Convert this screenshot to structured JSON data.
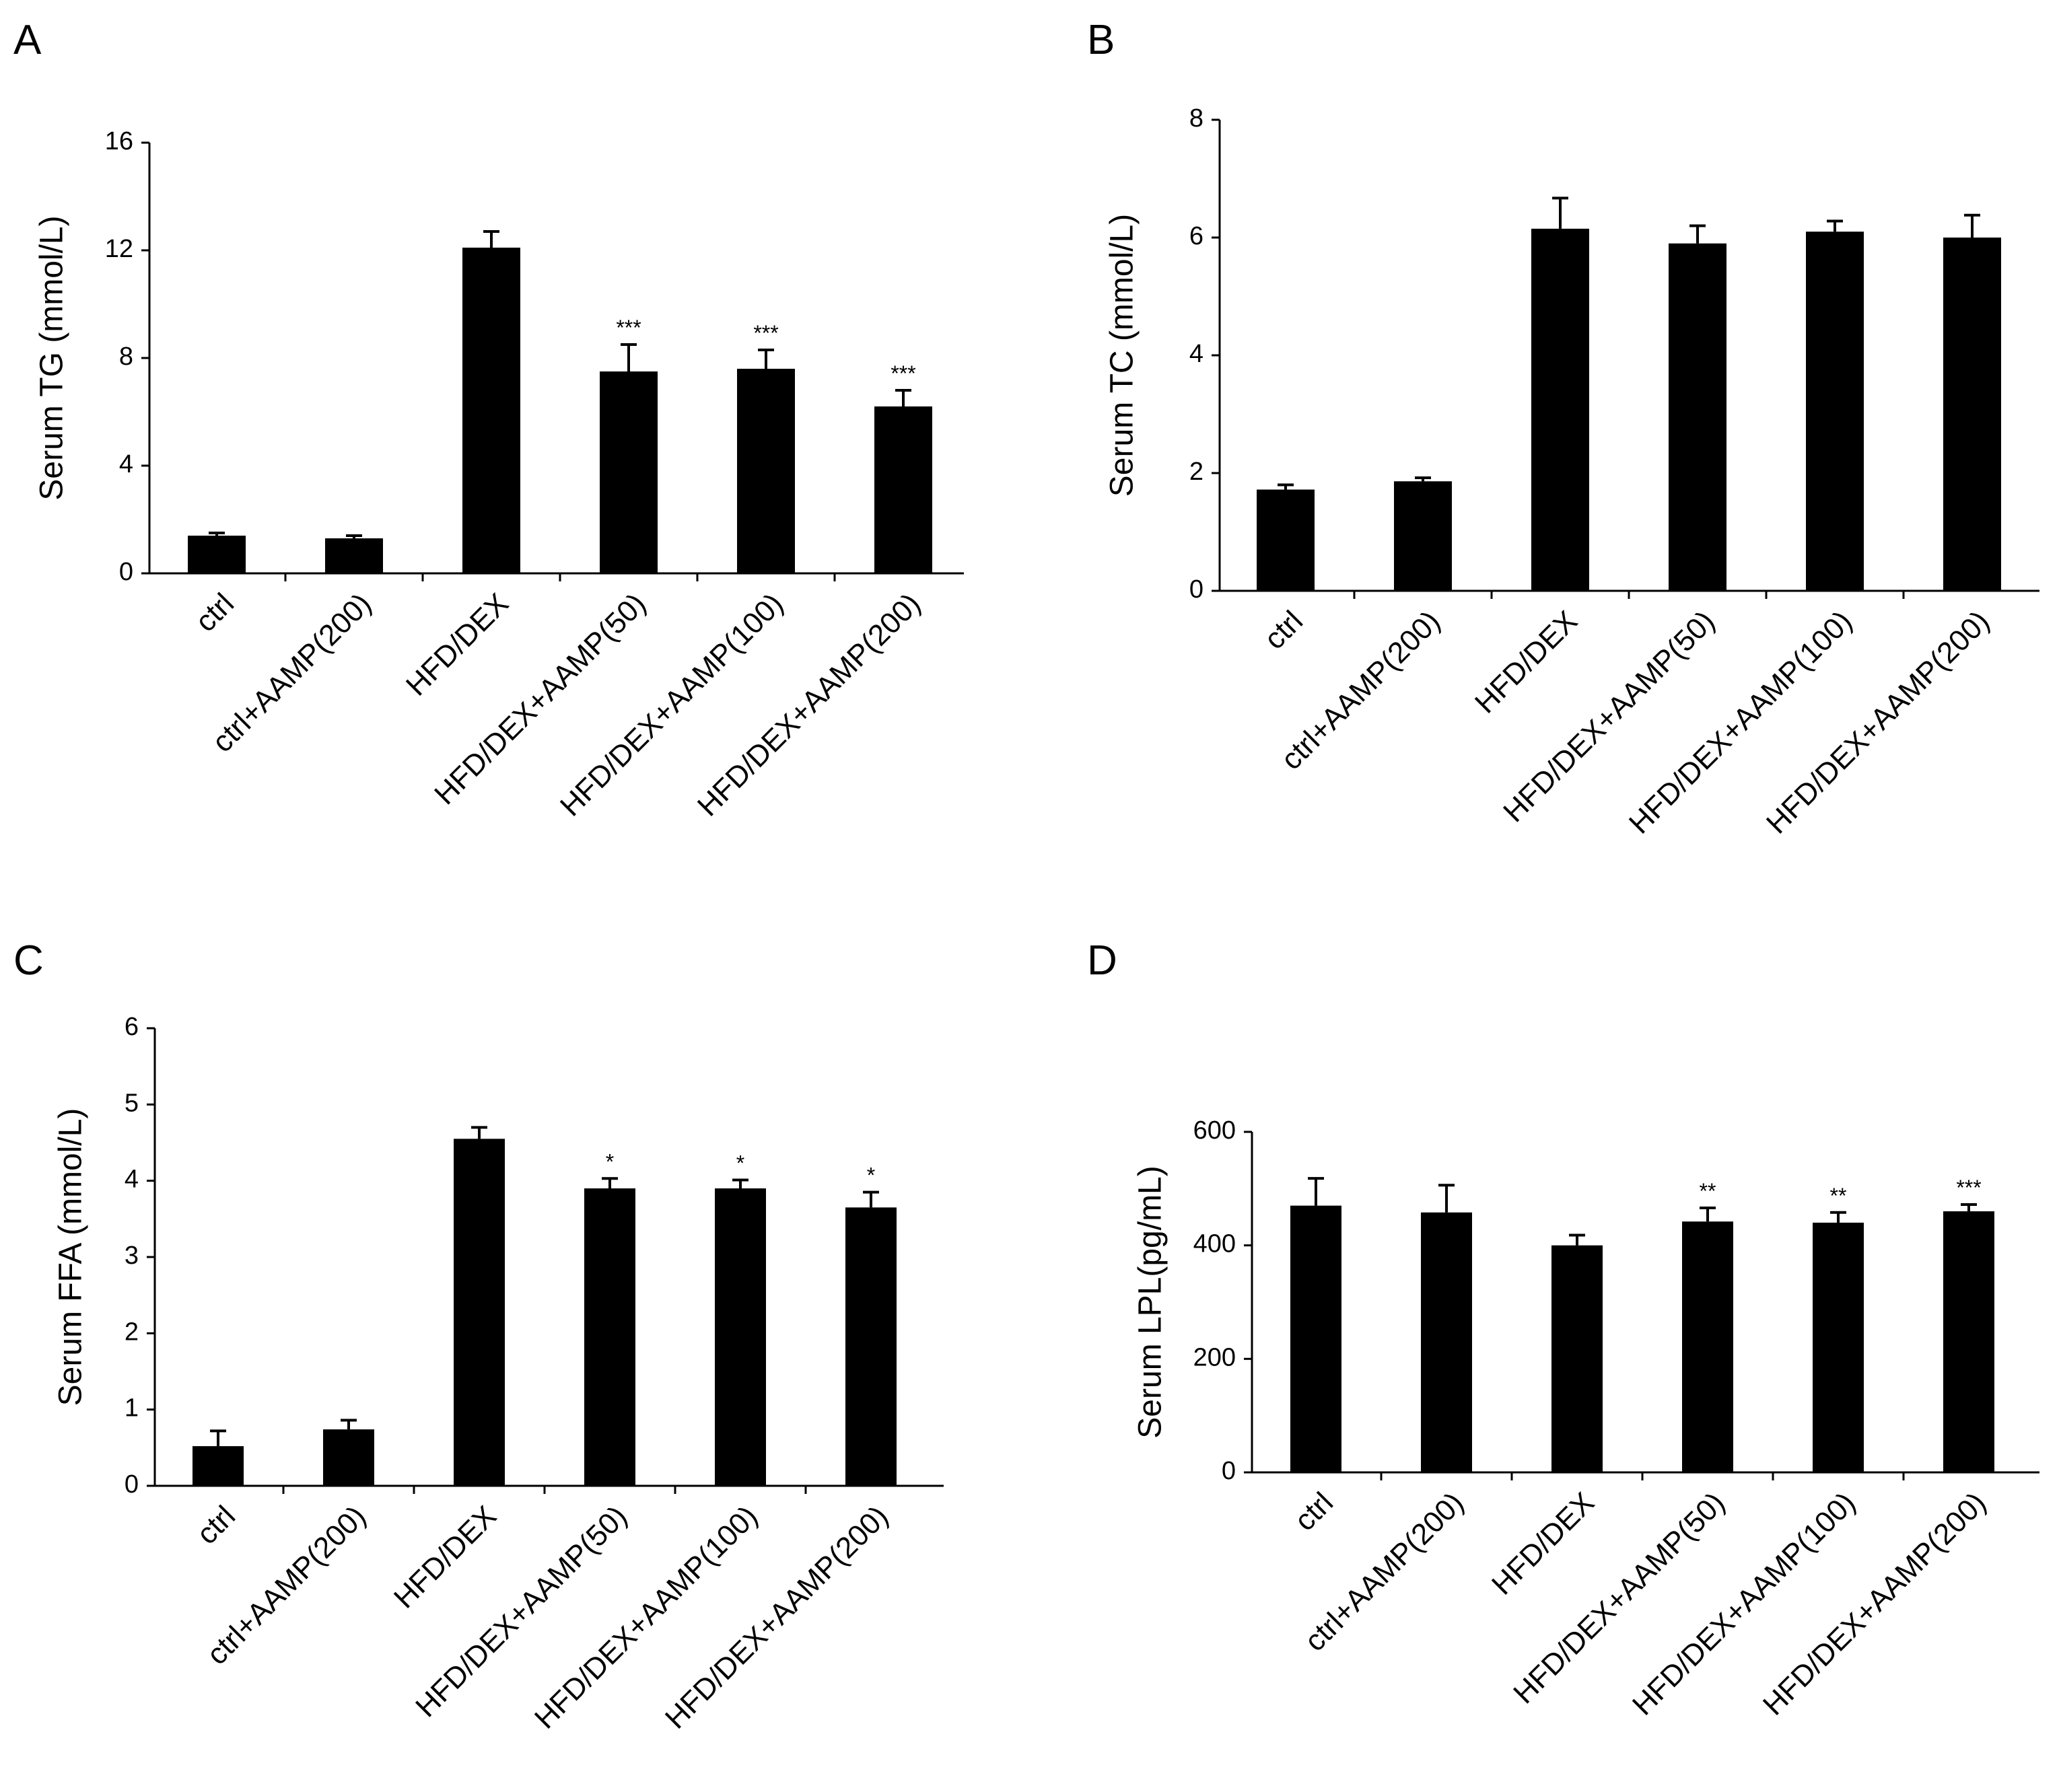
{
  "colors": {
    "bar": "#000000",
    "axis": "#000000",
    "background": "#ffffff"
  },
  "chart_data": [
    {
      "panel": "A",
      "type": "bar",
      "categories": [
        "ctrl",
        "ctrl+AAMP(200)",
        "HFD/DEX",
        "HFD/DEX+AAMP(50)",
        "HFD/DEX+AAMP(100)",
        "HFD/DEX+AAMP(200)"
      ],
      "values": [
        1.4,
        1.3,
        12.1,
        7.5,
        7.6,
        6.2
      ],
      "errors": [
        0.1,
        0.1,
        0.6,
        1.0,
        0.7,
        0.6
      ],
      "significance": [
        "",
        "",
        "",
        "***",
        "***",
        "***"
      ],
      "ylabel": "Serum TG (mmol/L)",
      "ylim": [
        0,
        16
      ],
      "yticks": [
        0,
        4,
        8,
        12,
        16
      ]
    },
    {
      "panel": "B",
      "type": "bar",
      "categories": [
        "ctrl",
        "ctrl+AAMP(200)",
        "HFD/DEX",
        "HFD/DEX+AAMP(50)",
        "HFD/DEX+AAMP(100)",
        "HFD/DEX+AAMP(200)"
      ],
      "values": [
        1.72,
        1.86,
        6.15,
        5.9,
        6.1,
        6.0
      ],
      "errors": [
        0.08,
        0.06,
        0.52,
        0.3,
        0.18,
        0.38
      ],
      "significance": [
        "",
        "",
        "",
        "",
        "",
        ""
      ],
      "ylabel": "Serum TC (mmol/L)",
      "ylim": [
        0,
        8
      ],
      "yticks": [
        0,
        2,
        4,
        6,
        8
      ]
    },
    {
      "panel": "C",
      "type": "bar",
      "categories": [
        "ctrl",
        "ctrl+AAMP(200)",
        "HFD/DEX",
        "HFD/DEX+AAMP(50)",
        "HFD/DEX+AAMP(100)",
        "HFD/DEX+AAMP(200)"
      ],
      "values": [
        0.52,
        0.74,
        4.55,
        3.9,
        3.9,
        3.65
      ],
      "errors": [
        0.2,
        0.12,
        0.15,
        0.13,
        0.11,
        0.2
      ],
      "significance": [
        "",
        "",
        "",
        "*",
        "*",
        "*"
      ],
      "ylabel": "Serum FFA (mmol/L)",
      "ylim": [
        0,
        6
      ],
      "yticks": [
        0,
        1,
        2,
        3,
        4,
        5,
        6
      ]
    },
    {
      "panel": "D",
      "type": "bar",
      "categories": [
        "ctrl",
        "ctrl+AAMP(200)",
        "HFD/DEX",
        "HFD/DEX+AAMP(50)",
        "HFD/DEX+AAMP(100)",
        "HFD/DEX+AAMP(200)"
      ],
      "values": [
        470,
        458,
        400,
        442,
        440,
        460
      ],
      "errors": [
        48,
        48,
        18,
        24,
        18,
        12
      ],
      "significance": [
        "",
        "",
        "",
        "**",
        "**",
        "***"
      ],
      "ylabel": "Serum LPL(pg/mL)",
      "ylim": [
        0,
        600
      ],
      "yticks": [
        0,
        200,
        400,
        600
      ]
    }
  ]
}
